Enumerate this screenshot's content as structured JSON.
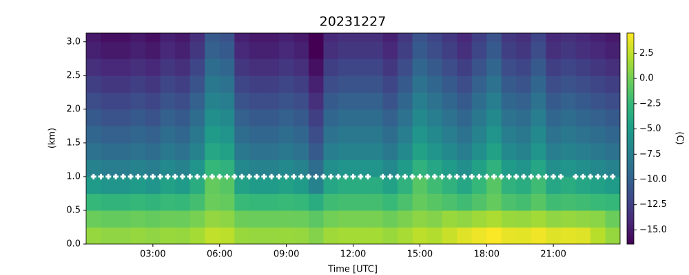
{
  "chart_data": {
    "type": "heatmap",
    "title": "20231227",
    "xlabel": "Time [UTC]",
    "ylabel": "(km)",
    "colorbar_label": "(C)",
    "colormap": "viridis",
    "xlim": [
      0,
      1440
    ],
    "ylim": [
      0,
      3.13
    ],
    "xticks": [
      {
        "value": 180,
        "label": "03:00"
      },
      {
        "value": 360,
        "label": "06:00"
      },
      {
        "value": 540,
        "label": "09:00"
      },
      {
        "value": 720,
        "label": "12:00"
      },
      {
        "value": 900,
        "label": "15:00"
      },
      {
        "value": 1080,
        "label": "18:00"
      },
      {
        "value": 1260,
        "label": "21:00"
      }
    ],
    "yticks": [
      {
        "value": 0,
        "label": "0.0"
      },
      0.5,
      {
        "value": 1,
        "label": "1.0"
      },
      1.5,
      {
        "value": 2,
        "label": "2.0"
      },
      2.5,
      {
        "value": 3,
        "label": "3.0"
      }
    ],
    "clim": [
      -16.4,
      4.5
    ],
    "cticks": [
      {
        "value": 2.5,
        "label": "2.5"
      },
      {
        "value": 0,
        "label": "0.0"
      },
      {
        "value": -2.5,
        "label": "−2.5"
      },
      {
        "value": -5,
        "label": "−5.0"
      },
      {
        "value": -7.5,
        "label": "−7.5"
      },
      {
        "value": -10,
        "label": "−10.0"
      },
      {
        "value": -12.5,
        "label": "−12.5"
      },
      {
        "value": -15,
        "label": "−15.0"
      }
    ],
    "x_edges": [
      0,
      40,
      80,
      120,
      160,
      200,
      240,
      280,
      320,
      360,
      400,
      440,
      480,
      520,
      560,
      600,
      640,
      680,
      720,
      760,
      800,
      840,
      880,
      920,
      960,
      1000,
      1040,
      1080,
      1120,
      1160,
      1200,
      1240,
      1280,
      1320,
      1360,
      1400,
      1440
    ],
    "y_edges": [
      0,
      0.25,
      0.5,
      0.75,
      1,
      1.25,
      1.5,
      1.75,
      2,
      2.25,
      2.5,
      2.75,
      3,
      3.25
    ],
    "z": [
      [
        1.2,
        1.0,
        1.0,
        1.2,
        1.0,
        1.3,
        1.2,
        1.7,
        2.6,
        2.4,
        1.3,
        1.2,
        1.2,
        1.3,
        1.2,
        0.6,
        1.5,
        1.7,
        1.7,
        1.7,
        1.3,
        1.8,
        2.4,
        2.1,
        2.8,
        3.5,
        4.0,
        4.4,
        3.8,
        3.7,
        4.1,
        3.5,
        3.7,
        3.5,
        2.3,
        1.2
      ],
      [
        -0.3,
        -0.5,
        -0.5,
        -0.3,
        -0.5,
        -0.2,
        -0.3,
        0.2,
        1.1,
        0.9,
        -0.2,
        -0.3,
        -0.3,
        -0.2,
        -0.3,
        -0.9,
        0,
        0.2,
        0.2,
        0.2,
        -0.2,
        0.3,
        0.9,
        0.6,
        1.3,
        1.0,
        1.5,
        1.9,
        1.3,
        1.2,
        1.6,
        1.0,
        1.2,
        1.0,
        0.8,
        -0.3
      ],
      [
        -2.5,
        -2.8,
        -2.8,
        -2.5,
        -2.8,
        -2.3,
        -2.5,
        -1.8,
        -0.3,
        -0.5,
        -2.3,
        -2.5,
        -2.5,
        -2.3,
        -2.5,
        -3.5,
        -2,
        -1.8,
        -1.8,
        -1.8,
        -2.3,
        -1.5,
        -0.5,
        -1,
        -1.5,
        -2,
        -1.3,
        -0.5,
        -1.5,
        -1.8,
        -1,
        -2,
        -1.8,
        -2,
        -2.3,
        -2.5
      ],
      [
        -5,
        -5.5,
        -5.5,
        -5,
        -5.5,
        -4.5,
        -5,
        -3.5,
        -0.5,
        -1,
        -4.5,
        -5,
        -5,
        -4.5,
        -5,
        -7,
        -4,
        -3.5,
        -3.5,
        -3.5,
        -4.5,
        -3,
        -1,
        -2,
        -3,
        -4,
        -2.5,
        -1,
        -3,
        -3.5,
        -2,
        -4,
        -3.5,
        -4,
        -4.5,
        -5
      ],
      [
        -7,
        -7.5,
        -7.5,
        -7,
        -7.5,
        -6.5,
        -7,
        -5.5,
        -2.5,
        -3,
        -6.5,
        -7,
        -7,
        -6.5,
        -7,
        -9,
        -6,
        -5.5,
        -5.5,
        -5.5,
        -6.5,
        -5,
        -3,
        -4,
        -5,
        -6,
        -4.5,
        -3,
        -5,
        -5.5,
        -4,
        -6,
        -5.5,
        -6,
        -6.5,
        -7
      ],
      [
        -8.5,
        -9,
        -9,
        -8.5,
        -9,
        -8,
        -8.5,
        -7,
        -4,
        -4.5,
        -8,
        -8.5,
        -8.5,
        -8,
        -8.5,
        -10.5,
        -7.5,
        -7,
        -7,
        -7,
        -8,
        -6.5,
        -4.5,
        -5.5,
        -6.5,
        -7.5,
        -6,
        -4.5,
        -6.5,
        -7,
        -5.5,
        -7.5,
        -7,
        -7.5,
        -8,
        -8.5
      ],
      [
        -9.5,
        -10,
        -10,
        -9.5,
        -10,
        -9,
        -9.5,
        -8,
        -5,
        -5.5,
        -9,
        -9.5,
        -9.5,
        -9,
        -9.5,
        -11.5,
        -8.5,
        -8,
        -8,
        -8,
        -9,
        -7.5,
        -5.5,
        -6.5,
        -7.5,
        -8.5,
        -7,
        -5.5,
        -7.5,
        -8,
        -6.5,
        -8.5,
        -8,
        -8.5,
        -9,
        -9.5
      ],
      [
        -10.5,
        -11,
        -11,
        -10.5,
        -11,
        -10,
        -10.5,
        -9,
        -6,
        -6.5,
        -10,
        -10.5,
        -10.5,
        -10,
        -10.5,
        -12.5,
        -9.5,
        -9,
        -9,
        -9,
        -10,
        -8.5,
        -6.5,
        -7.5,
        -8.5,
        -9.5,
        -8,
        -6.5,
        -8.5,
        -9,
        -7.5,
        -9.5,
        -9,
        -9.5,
        -10,
        -10.5
      ],
      [
        -11.5,
        -12,
        -12,
        -11.5,
        -12,
        -11,
        -11.5,
        -10,
        -7,
        -7.5,
        -11,
        -11.5,
        -11.5,
        -11,
        -11.5,
        -13.5,
        -10.5,
        -10,
        -10,
        -10,
        -11,
        -9.5,
        -7.5,
        -8.5,
        -9.5,
        -10.5,
        -9,
        -7.5,
        -9.5,
        -10,
        -8.5,
        -10.5,
        -10,
        -10.5,
        -11,
        -11.5
      ],
      [
        -12.5,
        -13,
        -13,
        -12.5,
        -13,
        -12,
        -12.5,
        -11,
        -8,
        -8.5,
        -12,
        -12.5,
        -12.5,
        -12,
        -12.5,
        -14.5,
        -11.5,
        -11,
        -11,
        -11,
        -12,
        -10.5,
        -8.5,
        -9.5,
        -10.5,
        -11.5,
        -10,
        -8.5,
        -10.5,
        -11,
        -9.5,
        -11.5,
        -11,
        -11.5,
        -12,
        -12.5
      ],
      [
        -13.5,
        -14,
        -14,
        -13.5,
        -14,
        -13,
        -13.5,
        -12,
        -9,
        -9.5,
        -13,
        -13.5,
        -13.5,
        -13,
        -13.5,
        -15.5,
        -12.5,
        -12,
        -12,
        -12,
        -13,
        -11.5,
        -9.5,
        -10.5,
        -11.5,
        -12.5,
        -11,
        -9.5,
        -11.5,
        -12,
        -10.5,
        -12.5,
        -12,
        -12.5,
        -13,
        -13.5
      ],
      [
        -14.5,
        -15,
        -15,
        -14.5,
        -15,
        -14,
        -14.5,
        -13,
        -10,
        -10.5,
        -14,
        -14.5,
        -14.5,
        -14,
        -14.5,
        -16.4,
        -13.5,
        -13,
        -13,
        -13,
        -14,
        -12.5,
        -10.5,
        -11.5,
        -12.5,
        -13.5,
        -12,
        -10.5,
        -12.5,
        -13,
        -11.5,
        -13.5,
        -13,
        -13.5,
        -14,
        -14.5
      ],
      [
        -15,
        -15.5,
        -15.5,
        -15,
        -15.5,
        -14.5,
        -15,
        -13.5,
        -10.5,
        -11,
        -14.5,
        -15,
        -15,
        -14.5,
        -15,
        -16.4,
        -14,
        -13.5,
        -13.5,
        -13.5,
        -14.5,
        -13,
        -11,
        -12,
        -13,
        -14,
        -12.5,
        -11,
        -13,
        -13.5,
        -12,
        -14,
        -13.5,
        -14,
        -14.5,
        -15
      ]
    ],
    "overlay": {
      "color": "#ffffff",
      "x": [
        20,
        40,
        60,
        80,
        100,
        120,
        140,
        160,
        180,
        200,
        220,
        240,
        260,
        280,
        300,
        320,
        340,
        360,
        380,
        400,
        420,
        440,
        460,
        480,
        500,
        520,
        540,
        560,
        580,
        600,
        620,
        640,
        660,
        680,
        700,
        720,
        740,
        760,
        800,
        820,
        840,
        860,
        880,
        900,
        920,
        940,
        960,
        980,
        1000,
        1020,
        1040,
        1060,
        1080,
        1100,
        1120,
        1140,
        1160,
        1180,
        1200,
        1220,
        1240,
        1260,
        1280,
        1320,
        1340,
        1360,
        1380,
        1400,
        1420
      ],
      "values": [
        1,
        1,
        1,
        1,
        1,
        1,
        1,
        1,
        1,
        1,
        1,
        1,
        1,
        1,
        1,
        1,
        1,
        1,
        1,
        1,
        1,
        1,
        1,
        1,
        1,
        1,
        1,
        1,
        1,
        1,
        1,
        1,
        1,
        1,
        1,
        1,
        1,
        1,
        1,
        1,
        1,
        1,
        1,
        1,
        1,
        1,
        1,
        1,
        1,
        1,
        1,
        1,
        1,
        1,
        1,
        1,
        1,
        1,
        1,
        1,
        1,
        1,
        1,
        1,
        1,
        1,
        1,
        1,
        1
      ]
    }
  }
}
